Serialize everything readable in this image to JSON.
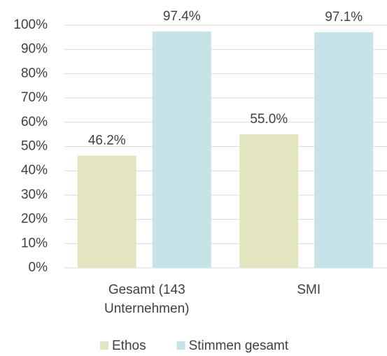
{
  "chart_data": {
    "type": "bar",
    "categories": [
      "Gesamt (143 Unternehmen)",
      "SMI"
    ],
    "series": [
      {
        "name": "Ethos",
        "color": "#e2e5c0",
        "values": [
          46.2,
          55.0
        ],
        "value_labels": [
          "46.2%",
          "55.0%"
        ]
      },
      {
        "name": "Stimmen gesamt",
        "color": "#c6e3e8",
        "values": [
          97.4,
          97.1
        ],
        "value_labels": [
          "97.4%",
          "97.1%"
        ]
      }
    ],
    "ylim": [
      0,
      100
    ],
    "yticks": [
      {
        "value": 0,
        "label": "0%"
      },
      {
        "value": 10,
        "label": "10%"
      },
      {
        "value": 20,
        "label": "20%"
      },
      {
        "value": 30,
        "label": "30%"
      },
      {
        "value": 40,
        "label": "40%"
      },
      {
        "value": 50,
        "label": "50%"
      },
      {
        "value": 60,
        "label": "60%"
      },
      {
        "value": 70,
        "label": "70%"
      },
      {
        "value": 80,
        "label": "80%"
      },
      {
        "value": 90,
        "label": "90%"
      },
      {
        "value": 100,
        "label": "100%"
      }
    ],
    "grid": true,
    "legend": "bottom"
  }
}
